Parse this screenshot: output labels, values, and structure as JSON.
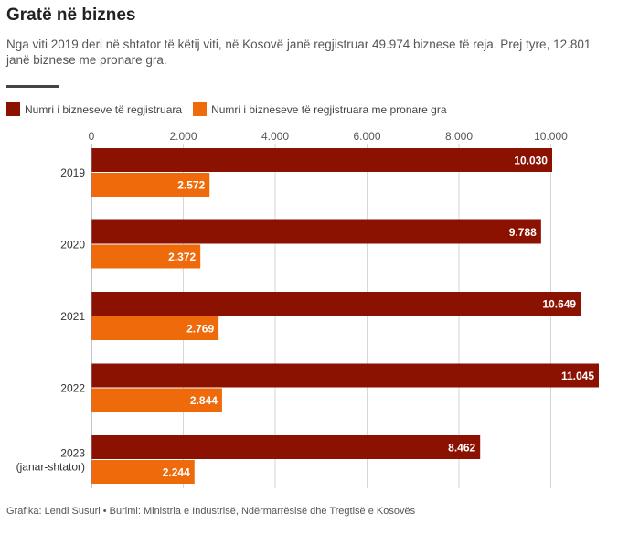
{
  "title": "Gratë në biznes",
  "subtitle": "Nga viti 2019 deri në shtator të këtij viti, në Kosovë janë regjistruar 49.974 biznese të reja. Prej tyre, 12.801 janë biznese me pronare gra.",
  "source": "Grafika: Lendi Susuri • Burimi: Ministria e Industrisë, Ndërmarrësisë dhe Tregtisë e Kosovës",
  "colors": {
    "series1": "#8b1100",
    "series2": "#ee6a0a"
  },
  "chart_data": {
    "type": "bar",
    "orientation": "horizontal",
    "categories": [
      "2019",
      "2020",
      "2021",
      "2022",
      "2023\n(janar-shtator)"
    ],
    "series": [
      {
        "name": "Numri i bizneseve të regjistruara",
        "values": [
          10030,
          9788,
          10649,
          11045,
          8462
        ],
        "labels": [
          "10.030",
          "9.788",
          "10.649",
          "11.045",
          "8.462"
        ]
      },
      {
        "name": "Numri i bizneseve të regjistruara me pronare gra",
        "values": [
          2572,
          2372,
          2769,
          2844,
          2244
        ],
        "labels": [
          "2.572",
          "2.372",
          "2.769",
          "2.844",
          "2.244"
        ]
      }
    ],
    "xticks": [
      0,
      2000,
      4000,
      6000,
      8000,
      10000
    ],
    "xtick_labels": [
      "0",
      "2.000",
      "4.000",
      "6.000",
      "8.000",
      "10.000"
    ],
    "xlim": [
      0,
      11045
    ],
    "grid": true,
    "legend_position": "top-left"
  }
}
